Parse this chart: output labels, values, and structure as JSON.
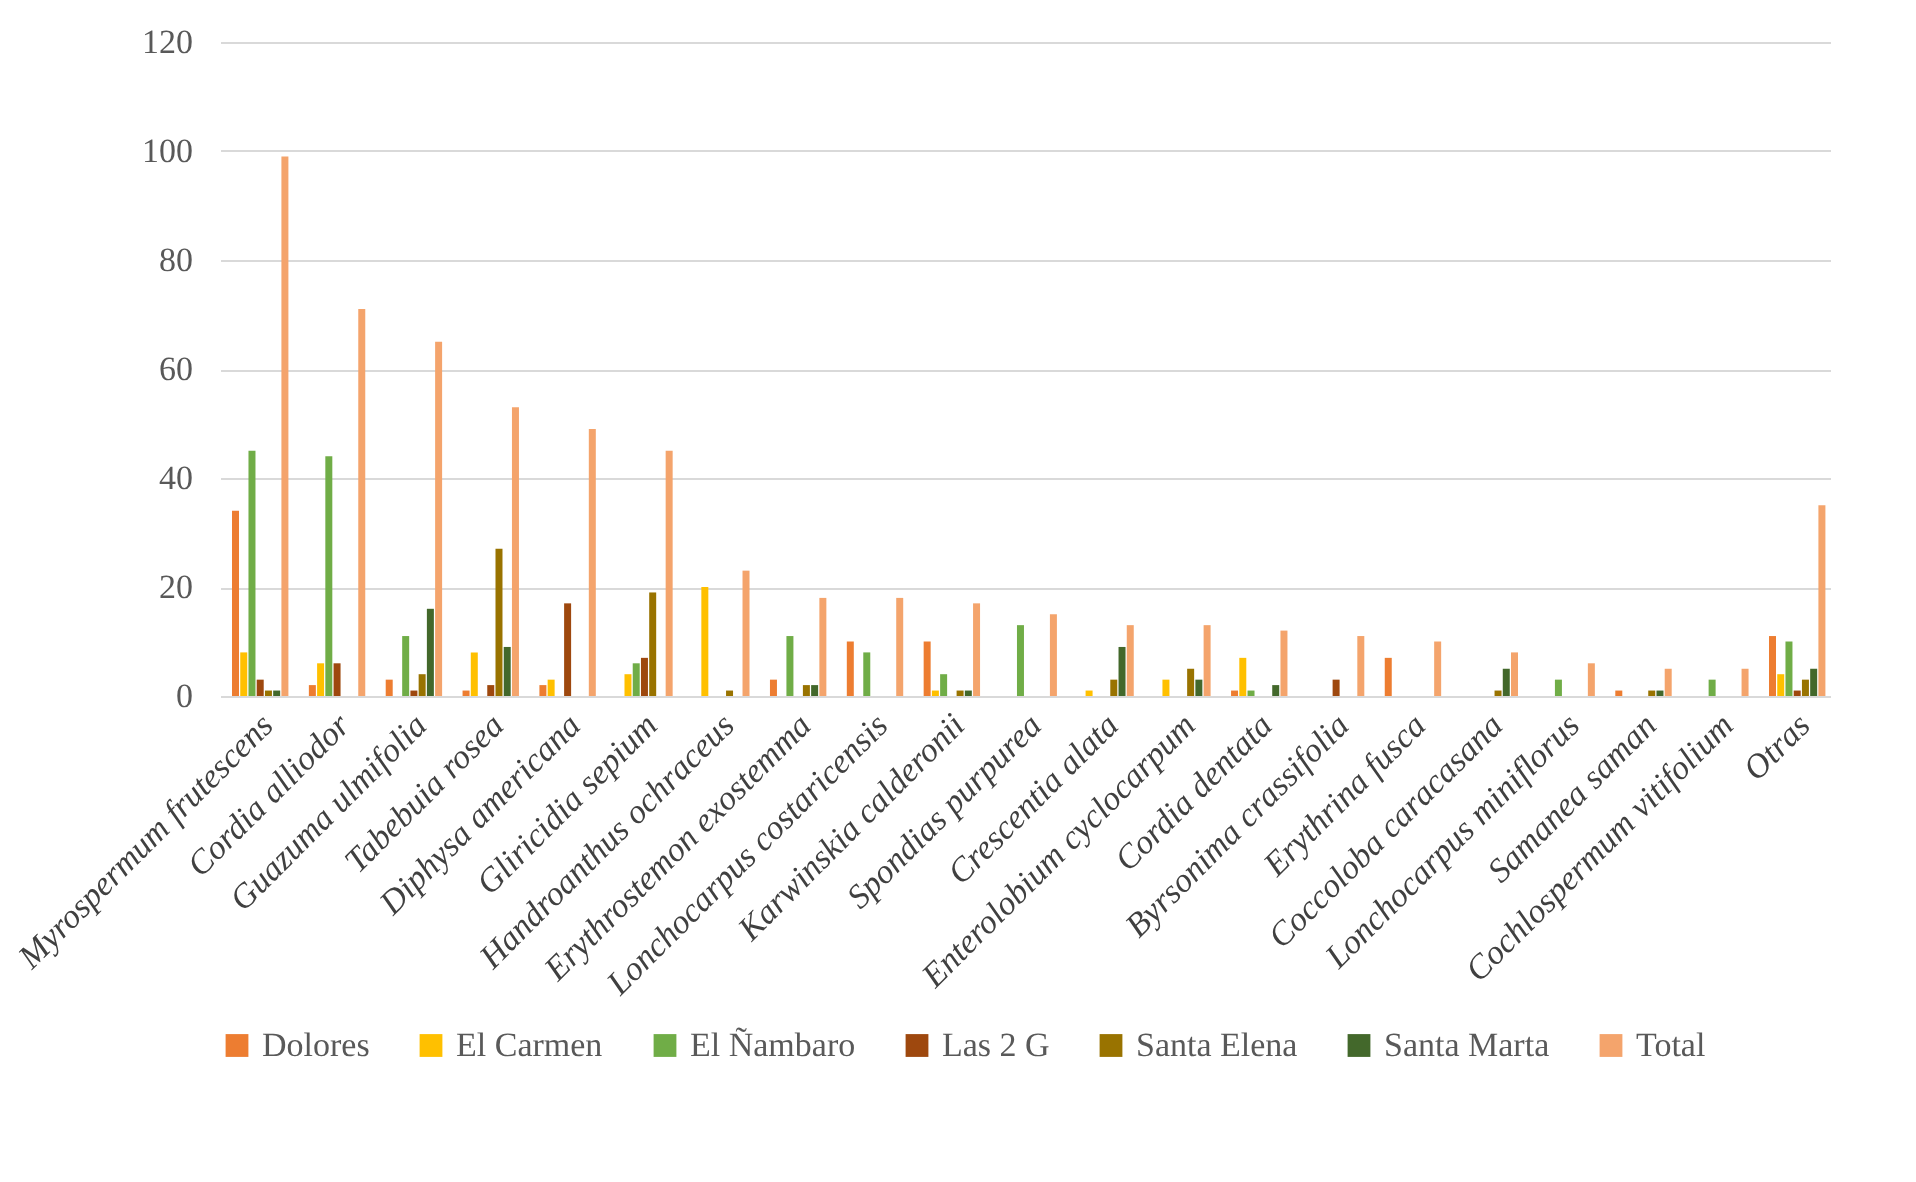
{
  "chart_data": {
    "type": "bar",
    "categories": [
      "Myrospermum frutescens",
      "Cordia alliodor",
      "Guazuma ulmifolia",
      "Tabebuia rosea",
      "Diphysa americana",
      "Gliricidia sepium",
      "Handroanthus ochraceus",
      "Erythrostemon exostemma",
      "Lonchocarpus costaricensis",
      "Karwinskia calderonii",
      "Spondias purpurea",
      "Crescentia alata",
      "Enterolobium cyclocarpum",
      "Cordia dentata",
      "Byrsonima crassifolia",
      "Erythrina fusca",
      "Coccoloba caracasana",
      "Lonchocarpus miniflorus",
      "Samanea saman",
      "Cochlospermum vitifolium",
      "Otras"
    ],
    "series": [
      {
        "name": "Dolores",
        "color": "#ed7d31",
        "values": [
          34,
          2,
          3,
          1,
          2,
          null,
          null,
          3,
          10,
          10,
          null,
          null,
          null,
          1,
          null,
          7,
          null,
          null,
          1,
          null,
          11
        ]
      },
      {
        "name": "El Carmen",
        "color": "#ffc000",
        "values": [
          8,
          6,
          null,
          8,
          3,
          4,
          20,
          null,
          null,
          1,
          null,
          1,
          3,
          7,
          null,
          null,
          null,
          null,
          null,
          null,
          4
        ]
      },
      {
        "name": "El Ñambaro",
        "color": "#70ad47",
        "values": [
          45,
          44,
          11,
          null,
          null,
          6,
          null,
          11,
          8,
          4,
          13,
          null,
          null,
          1,
          null,
          null,
          null,
          3,
          null,
          3,
          10
        ]
      },
      {
        "name": "Las 2 G",
        "color": "#9e480e",
        "values": [
          3,
          6,
          1,
          2,
          17,
          7,
          null,
          null,
          null,
          null,
          null,
          null,
          null,
          null,
          3,
          null,
          null,
          null,
          null,
          null,
          1
        ]
      },
      {
        "name": "Santa Elena",
        "color": "#997300",
        "values": [
          1,
          null,
          4,
          27,
          null,
          19,
          1,
          2,
          null,
          1,
          null,
          3,
          5,
          null,
          null,
          null,
          1,
          null,
          1,
          null,
          3
        ]
      },
      {
        "name": "Santa Marta",
        "color": "#43682b",
        "values": [
          1,
          null,
          16,
          9,
          null,
          null,
          null,
          2,
          null,
          1,
          null,
          9,
          3,
          2,
          null,
          null,
          5,
          null,
          1,
          null,
          5
        ]
      },
      {
        "name": "Total",
        "color": "#f4a46c",
        "values": [
          99,
          71,
          65,
          53,
          49,
          45,
          23,
          18,
          18,
          17,
          15,
          13,
          13,
          12,
          11,
          10,
          8,
          6,
          5,
          5,
          35
        ]
      }
    ],
    "ylim": [
      0,
      120
    ],
    "yticks": [
      0,
      20,
      40,
      60,
      80,
      100,
      120
    ],
    "grid": "y",
    "legend": "bottom"
  }
}
